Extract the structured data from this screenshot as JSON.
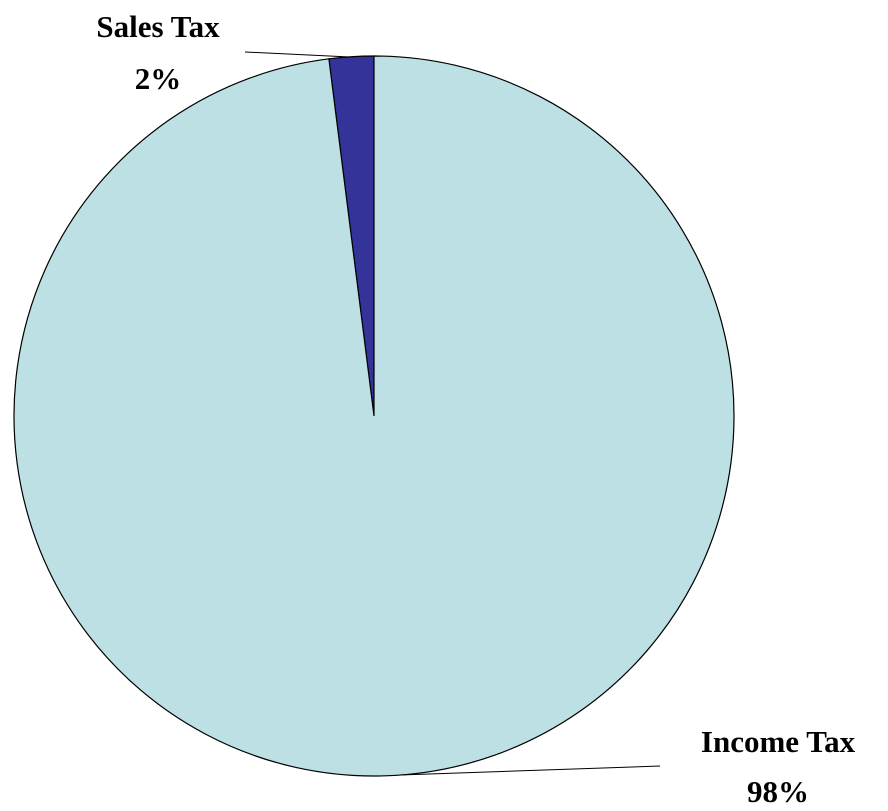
{
  "chart_data": {
    "type": "pie",
    "categories": [
      "Sales Tax",
      "Income Tax"
    ],
    "values": [
      2,
      98
    ],
    "value_labels": [
      "2%",
      "98%"
    ],
    "colors": [
      "#333399",
      "#bce0e4"
    ]
  }
}
